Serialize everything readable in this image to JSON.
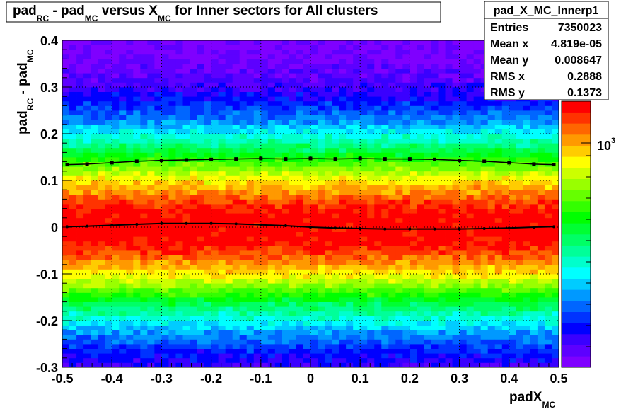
{
  "title": {
    "parts": [
      {
        "main": "pad",
        "sub": "RC"
      },
      {
        "main": " - pad",
        "sub": "MC"
      },
      {
        "main": " versus X",
        "sub": "MC"
      },
      {
        "main": " for Inner sectors for All clusters",
        "sub": ""
      }
    ]
  },
  "stats": {
    "name": "pad_X_MC_Innerp1",
    "rows": [
      {
        "label": "Entries",
        "value": "7350023"
      },
      {
        "label": "Mean x",
        "value": "4.819e-05"
      },
      {
        "label": "Mean y",
        "value": "0.008647"
      },
      {
        "label": "RMS x",
        "value": "0.2888"
      },
      {
        "label": "RMS y",
        "value": "0.1373"
      }
    ]
  },
  "colorbar": {
    "label_main": "10",
    "label_exp": "3"
  },
  "colors": {
    "palette": [
      "#7f00ff",
      "#5d00ff",
      "#3a00ff",
      "#0000ff",
      "#0033ff",
      "#0066ff",
      "#0099ff",
      "#00ccff",
      "#00ffff",
      "#00ffcc",
      "#00ff99",
      "#00ff66",
      "#00ff33",
      "#00ff00",
      "#33ff00",
      "#66ff00",
      "#99ff00",
      "#ccff00",
      "#ffff00",
      "#ffcc00",
      "#ff9900",
      "#ff6600",
      "#ff3300",
      "#ff0000"
    ]
  },
  "chart_data": {
    "type": "heatmap",
    "xlabel": {
      "main": "padX",
      "sub": "MC"
    },
    "ylabel": {
      "parts": [
        {
          "main": "pad",
          "sub": "RC"
        },
        {
          "main": " - pad",
          "sub": "MC"
        }
      ]
    },
    "xlim": [
      -0.5,
      0.5
    ],
    "ylim": [
      -0.3,
      0.4
    ],
    "x_ticks": [
      "-0.5",
      "-0.4",
      "-0.3",
      "-0.2",
      "-0.1",
      "0",
      "0.1",
      "0.2",
      "0.3",
      "0.4",
      "0.5"
    ],
    "y_ticks": [
      "-0.3",
      "-0.2",
      "-0.1",
      "0",
      "0.1",
      "0.2",
      "0.3",
      "0.4"
    ],
    "grid": true,
    "density_model": {
      "peak_y": 0.0,
      "sigma": 0.14
    },
    "series": [
      {
        "marker": "square",
        "x": [
          -0.49,
          -0.45,
          -0.4,
          -0.35,
          -0.3,
          -0.25,
          -0.2,
          -0.15,
          -0.1,
          -0.05,
          0,
          0.05,
          0.1,
          0.15,
          0.2,
          0.25,
          0.3,
          0.35,
          0.4,
          0.45,
          0.49
        ],
        "y": [
          0.134,
          0.135,
          0.138,
          0.141,
          0.143,
          0.144,
          0.145,
          0.146,
          0.147,
          0.146,
          0.147,
          0.146,
          0.147,
          0.146,
          0.146,
          0.145,
          0.143,
          0.141,
          0.138,
          0.135,
          0.134
        ]
      },
      {
        "marker": "dot",
        "x": [
          -0.49,
          -0.45,
          -0.4,
          -0.35,
          -0.3,
          -0.25,
          -0.2,
          -0.15,
          -0.1,
          -0.05,
          0,
          0.05,
          0.1,
          0.15,
          0.2,
          0.25,
          0.3,
          0.35,
          0.4,
          0.45,
          0.49
        ],
        "y": [
          0.001,
          0.002,
          0.004,
          0.006,
          0.008,
          0.008,
          0.008,
          0.007,
          0.005,
          0.003,
          0.0,
          -0.002,
          -0.003,
          -0.004,
          -0.004,
          -0.004,
          -0.004,
          -0.003,
          -0.002,
          0.0,
          0.001
        ]
      }
    ]
  }
}
